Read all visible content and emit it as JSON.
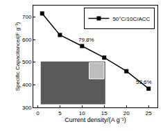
{
  "chart_data": {
    "type": "line",
    "x_label": "Current density/(A g⁻¹)",
    "y_label": "Specific Capacitance/(F g⁻¹)",
    "x": [
      1,
      5,
      10,
      15,
      20,
      25
    ],
    "series": [
      {
        "name": "50°C/10C/ACC",
        "color": "#000000",
        "marker": "square",
        "line_style": "solid",
        "values": [
          715,
          620,
          571,
          520,
          460,
          383
        ]
      }
    ],
    "xlim": [
      -1,
      27
    ],
    "xticks": [
      0,
      5,
      10,
      15,
      20,
      25
    ],
    "ylim": [
      300,
      750
    ],
    "yticks": [
      300,
      400,
      500,
      600,
      700
    ],
    "annotations": [
      {
        "text": "79.8%",
        "x": 11,
        "y": 600
      },
      {
        "text": "53.6%",
        "x": 24,
        "y": 412
      }
    ],
    "legend": "top right",
    "grid": false
  }
}
